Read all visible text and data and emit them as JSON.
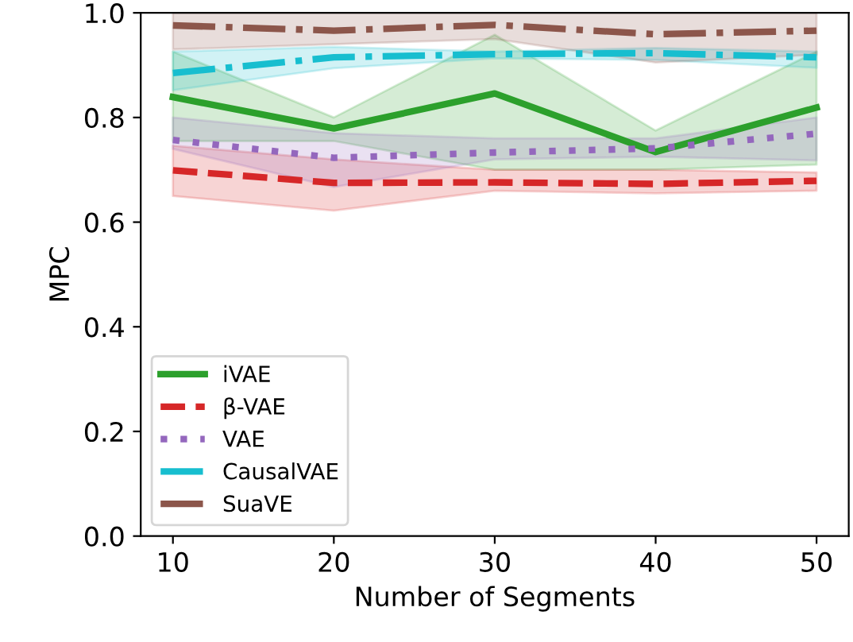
{
  "chart_data": {
    "type": "line",
    "xlabel": "Number of Segments",
    "ylabel": "MPC",
    "x": [
      10,
      20,
      30,
      40,
      50
    ],
    "xlim": [
      8,
      52
    ],
    "xticks": [
      10,
      20,
      30,
      40,
      50
    ],
    "ylim": [
      0,
      1
    ],
    "yticks": [
      {
        "value": 0,
        "label": "0.0"
      },
      0.2,
      0.4,
      0.6,
      0.8,
      {
        "value": 1,
        "label": "1.0"
      }
    ],
    "grid": false,
    "legend": "bottom left",
    "marker": "none",
    "series": [
      {
        "name": "iVAE",
        "color": "#2ca02c",
        "line_style": "solid",
        "values": [
          0.839,
          0.779,
          0.846,
          0.734,
          0.819
        ],
        "lower": [
          0.755,
          0.755,
          0.7,
          0.7,
          0.71
        ],
        "upper": [
          0.926,
          0.8,
          0.958,
          0.775,
          0.926
        ]
      },
      {
        "name": "β-VAE",
        "color": "#d62728",
        "line_style": "dashed",
        "values": [
          0.699,
          0.675,
          0.676,
          0.673,
          0.679
        ],
        "lower": [
          0.65,
          0.622,
          0.66,
          0.655,
          0.66
        ],
        "upper": [
          0.746,
          0.72,
          0.7,
          0.7,
          0.695
        ]
      },
      {
        "name": "VAE",
        "color": "#9467bd",
        "line_style": "dotted",
        "values": [
          0.757,
          0.723,
          0.733,
          0.741,
          0.769
        ],
        "lower": [
          0.74,
          0.667,
          0.72,
          0.725,
          0.718
        ],
        "upper": [
          0.8,
          0.77,
          0.76,
          0.76,
          0.8
        ]
      },
      {
        "name": "CausalVAE",
        "color": "#17becf",
        "line_style": "dashdot",
        "values": [
          0.885,
          0.915,
          0.921,
          0.923,
          0.915
        ],
        "lower": [
          0.852,
          0.894,
          0.913,
          0.91,
          0.895
        ],
        "upper": [
          0.926,
          0.935,
          0.926,
          0.933,
          0.926
        ]
      },
      {
        "name": "SuaVE",
        "color": "#8c564b",
        "line_style": "dashdot",
        "values": [
          0.976,
          0.966,
          0.977,
          0.959,
          0.966
        ],
        "lower": [
          0.93,
          0.94,
          0.95,
          0.905,
          0.92
        ],
        "upper": [
          1.0,
          1.0,
          1.0,
          1.0,
          1.0
        ]
      }
    ]
  }
}
